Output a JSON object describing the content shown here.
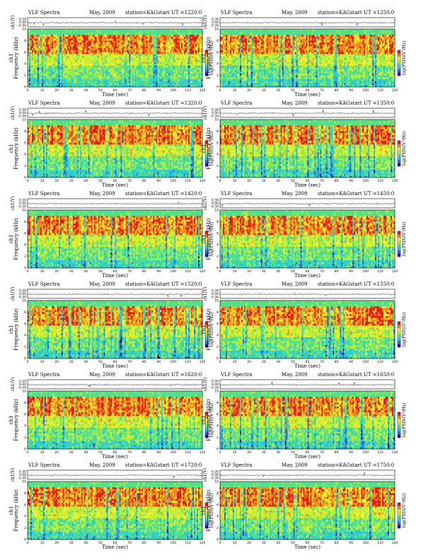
{
  "figure": {
    "title_left": "VLF Spectra",
    "date": "May, 2009",
    "station": "station=KAG",
    "start_prefix": "start  UT =",
    "waveform_ylabel": "ch1(V)",
    "spec_ylabel_top": "ch1",
    "spec_ylabel_bottom": "Frequency (kHz)",
    "xlabel": "Time (sec)",
    "colorbar_label": "log(PSD)(V²/Hz)"
  },
  "chart_data": [
    {
      "type": "heatmap",
      "start_ut": "1220:0",
      "x": [
        0,
        120
      ],
      "ylim": [
        0,
        10
      ],
      "waveform_ylim": [
        -0.3,
        0.3
      ],
      "xticks": [
        0,
        10,
        20,
        30,
        40,
        50,
        60,
        70,
        80,
        90,
        100,
        110,
        120
      ],
      "yticks": [
        0,
        2,
        4,
        6,
        8,
        10
      ],
      "wave_yticks": [
        "0.30",
        "0.00",
        "-0.30"
      ]
    },
    {
      "type": "heatmap",
      "start_ut": "1250:0",
      "x": [
        0,
        120
      ],
      "ylim": [
        0,
        10
      ],
      "waveform_ylim": [
        -0.3,
        0.3
      ],
      "xticks": [
        0,
        10,
        20,
        30,
        40,
        50,
        60,
        70,
        80,
        90,
        100,
        110,
        120
      ],
      "yticks": [
        0,
        2,
        4,
        6,
        8,
        10
      ],
      "wave_yticks": [
        "0.30",
        "0.00",
        "-0.30"
      ]
    },
    {
      "type": "heatmap",
      "start_ut": "1320:0",
      "x": [
        0,
        120
      ],
      "ylim": [
        0,
        10
      ],
      "waveform_ylim": [
        -0.3,
        0.3
      ],
      "xticks": [
        0,
        10,
        20,
        30,
        40,
        50,
        60,
        70,
        80,
        90,
        100,
        110,
        120
      ],
      "yticks": [
        0,
        2,
        4,
        6,
        8,
        10
      ],
      "wave_yticks": [
        "0.30",
        "0.00",
        "-0.30"
      ]
    },
    {
      "type": "heatmap",
      "start_ut": "1350:0",
      "x": [
        0,
        120
      ],
      "ylim": [
        0,
        10
      ],
      "waveform_ylim": [
        -0.3,
        0.3
      ],
      "xticks": [
        0,
        10,
        20,
        30,
        40,
        50,
        60,
        70,
        80,
        90,
        100,
        110,
        120
      ],
      "yticks": [
        0,
        2,
        4,
        6,
        8,
        10
      ],
      "wave_yticks": [
        "0.30",
        "0.00",
        "-0.30"
      ]
    },
    {
      "type": "heatmap",
      "start_ut": "1420:0",
      "x": [
        0,
        120
      ],
      "ylim": [
        0,
        10
      ],
      "waveform_ylim": [
        -0.3,
        0.3
      ],
      "xticks": [
        0,
        10,
        20,
        30,
        40,
        50,
        60,
        70,
        80,
        90,
        100,
        110,
        120
      ],
      "yticks": [
        0,
        2,
        4,
        6,
        8,
        10
      ],
      "wave_yticks": [
        "0.30",
        "0.00",
        "-0.30"
      ]
    },
    {
      "type": "heatmap",
      "start_ut": "1450:0",
      "x": [
        0,
        120
      ],
      "ylim": [
        0,
        10
      ],
      "waveform_ylim": [
        -0.3,
        0.3
      ],
      "xticks": [
        0,
        10,
        20,
        30,
        40,
        50,
        60,
        70,
        80,
        90,
        100,
        110,
        120
      ],
      "yticks": [
        0,
        2,
        4,
        6,
        8,
        10
      ],
      "wave_yticks": [
        "0.30",
        "0.00",
        "-0.30"
      ]
    },
    {
      "type": "heatmap",
      "start_ut": "1520:0",
      "x": [
        0,
        120
      ],
      "ylim": [
        0,
        10
      ],
      "waveform_ylim": [
        -0.3,
        0.3
      ],
      "xticks": [
        0,
        10,
        20,
        30,
        40,
        50,
        60,
        70,
        80,
        90,
        100,
        110,
        120
      ],
      "yticks": [
        0,
        2,
        4,
        6,
        8,
        10
      ],
      "wave_yticks": [
        "0.30",
        "0.00",
        "-0.30"
      ]
    },
    {
      "type": "heatmap",
      "start_ut": "1550:0",
      "x": [
        0,
        120
      ],
      "ylim": [
        0,
        10
      ],
      "waveform_ylim": [
        -0.3,
        0.3
      ],
      "xticks": [
        0,
        10,
        20,
        30,
        40,
        50,
        60,
        70,
        80,
        90,
        100,
        110,
        120
      ],
      "yticks": [
        0,
        2,
        4,
        6,
        8,
        10
      ],
      "wave_yticks": [
        "0.30",
        "0.00",
        "-0.30"
      ]
    },
    {
      "type": "heatmap",
      "start_ut": "1620:0",
      "x": [
        0,
        120
      ],
      "ylim": [
        0,
        10
      ],
      "waveform_ylim": [
        -0.3,
        0.3
      ],
      "xticks": [
        0,
        10,
        20,
        30,
        40,
        50,
        60,
        70,
        80,
        90,
        100,
        110,
        120
      ],
      "yticks": [
        0,
        2,
        4,
        6,
        8,
        10
      ],
      "wave_yticks": [
        "0.30",
        "0.00",
        "-0.30"
      ]
    },
    {
      "type": "heatmap",
      "start_ut": "1650:0",
      "x": [
        0,
        120
      ],
      "ylim": [
        0,
        10
      ],
      "waveform_ylim": [
        -0.3,
        0.3
      ],
      "xticks": [
        0,
        10,
        20,
        30,
        40,
        50,
        60,
        70,
        80,
        90,
        100,
        110,
        120
      ],
      "yticks": [
        0,
        2,
        4,
        6,
        8,
        10
      ],
      "wave_yticks": [
        "0.30",
        "0.00",
        "-0.30"
      ]
    },
    {
      "type": "heatmap",
      "start_ut": "1720:0",
      "x": [
        0,
        120
      ],
      "ylim": [
        0,
        10
      ],
      "waveform_ylim": [
        -0.3,
        0.3
      ],
      "xticks": [
        0,
        10,
        20,
        30,
        40,
        50,
        60,
        70,
        80,
        90,
        100,
        110,
        120
      ],
      "yticks": [
        0,
        2,
        4,
        6,
        8,
        10
      ],
      "wave_yticks": [
        "0.30",
        "0.00",
        "-0.30"
      ]
    },
    {
      "type": "heatmap",
      "start_ut": "1750:0",
      "x": [
        0,
        120
      ],
      "ylim": [
        0,
        10
      ],
      "waveform_ylim": [
        -0.3,
        0.3
      ],
      "xticks": [
        0,
        10,
        20,
        30,
        40,
        50,
        60,
        70,
        80,
        90,
        100,
        110,
        120
      ],
      "yticks": [
        0,
        2,
        4,
        6,
        8,
        10
      ],
      "wave_yticks": [
        "0.30",
        "0.00",
        "-0.30"
      ]
    }
  ],
  "colormap": [
    "#1a1aa8",
    "#2f6fd8",
    "#24c8e0",
    "#52e08a",
    "#b8ee3a",
    "#f2ee2a",
    "#ee8a1e",
    "#e21a1a"
  ]
}
